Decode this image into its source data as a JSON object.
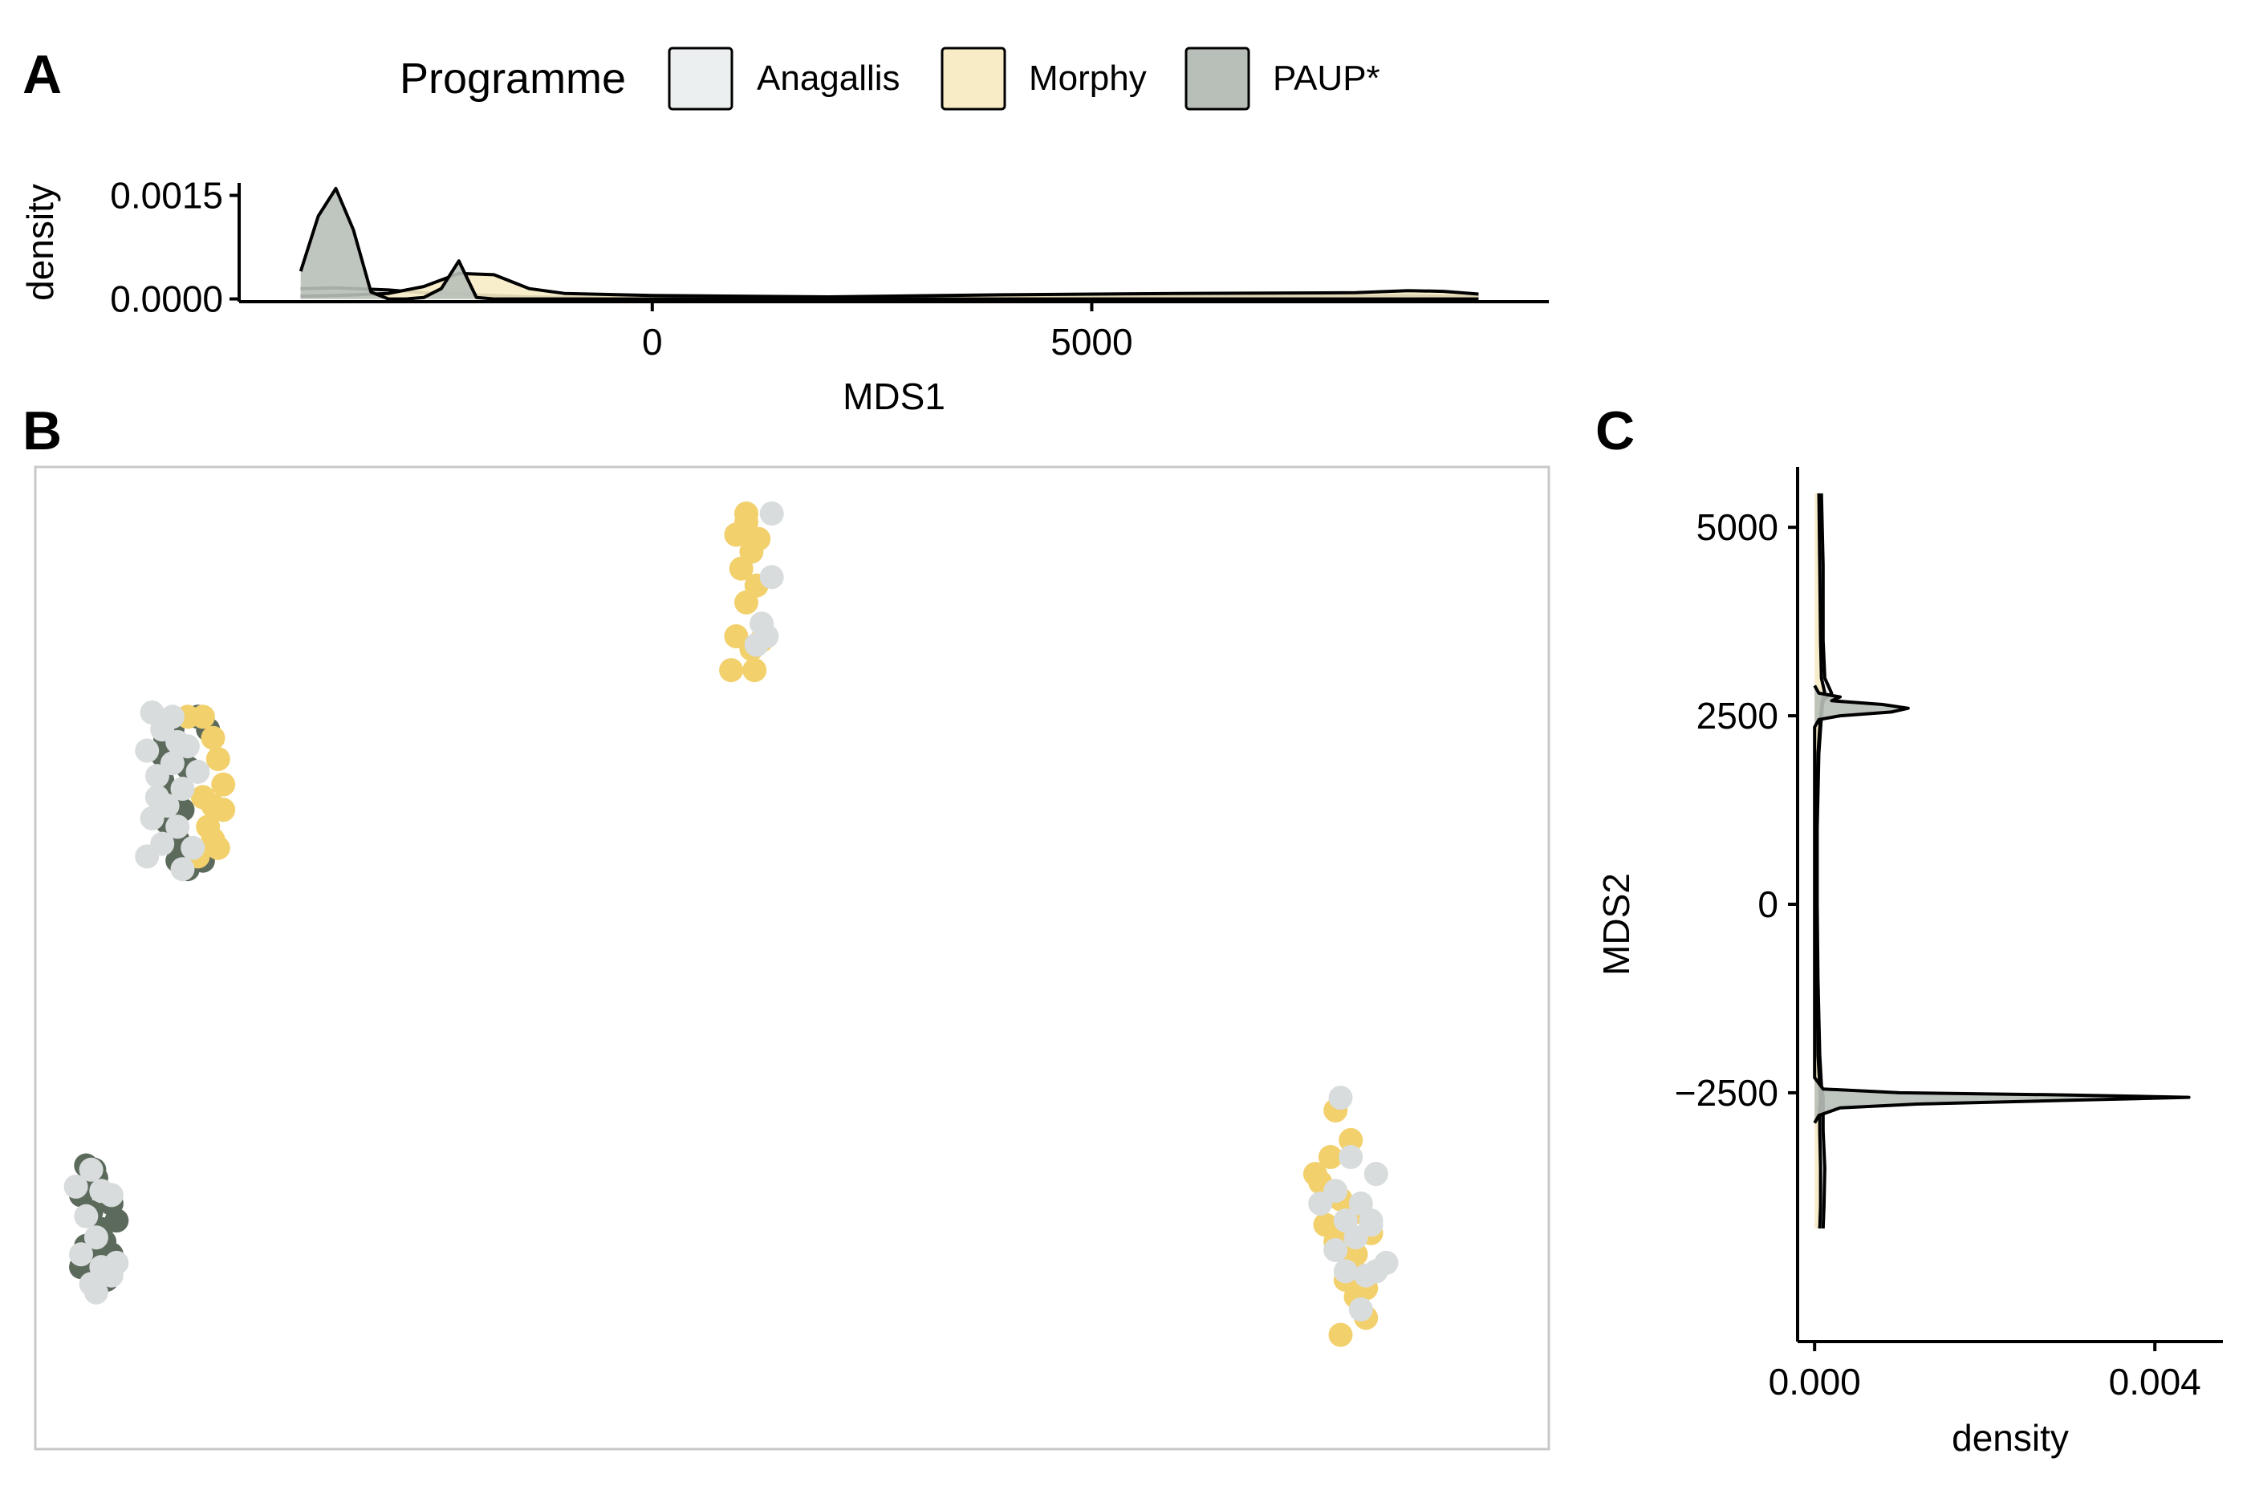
{
  "figure": {
    "panel_labels": {
      "a": "A",
      "b": "B",
      "c": "C"
    }
  },
  "legend": {
    "title": "Programme",
    "items": [
      {
        "label": "Anagallis",
        "fill": "#eceff0"
      },
      {
        "label": "Morphy",
        "fill": "#f8ecc6"
      },
      {
        "label": "PAUP*",
        "fill": "#b8bfb8"
      }
    ]
  },
  "colors": {
    "Anagallis": "#d8dcdc",
    "Morphy": "#f2d06c",
    "PAUP*": "#5c6a5c",
    "line": "#000000",
    "panel_border": "#c8c8c8"
  },
  "chart_data": [
    {
      "id": "A",
      "type": "area",
      "xlabel": "MDS1",
      "ylabel": "density",
      "xlim": [
        -4700,
        10200
      ],
      "ylim": [
        -4e-05,
        0.00168
      ],
      "x_ticks": [
        0,
        5000
      ],
      "x_tick_labels": [
        "0",
        "5000"
      ],
      "y_ticks": [
        0.0,
        0.0015
      ],
      "y_tick_labels": [
        "0.0000",
        "0.0015"
      ],
      "series": [
        {
          "name": "Anagallis",
          "x": [
            -4000,
            -3600,
            -3000,
            -2600,
            -2200,
            -1800,
            -1400,
            -1000,
            0,
            2000,
            4000,
            6000,
            8000,
            8600,
            9000,
            9400
          ],
          "y": [
            0.00015,
            0.00016,
            0.00013,
            9e-05,
            7e-05,
            5e-05,
            3e-05,
            2e-05,
            1e-05,
            0.0,
            2e-05,
            3e-05,
            4e-05,
            5e-05,
            4e-05,
            3e-05
          ]
        },
        {
          "name": "Morphy",
          "x": [
            -4000,
            -3600,
            -3000,
            -2600,
            -2200,
            -1800,
            -1400,
            -1000,
            0,
            2000,
            4000,
            6000,
            8000,
            8600,
            9000,
            9400
          ],
          "y": [
            4e-05,
            5e-05,
            8e-05,
            0.00018,
            0.00037,
            0.00035,
            0.00015,
            8e-05,
            5e-05,
            3e-05,
            6e-05,
            8e-05,
            9e-05,
            0.00012,
            0.00011,
            7e-05
          ]
        },
        {
          "name": "PAUP*",
          "x": [
            -4000,
            -3800,
            -3600,
            -3400,
            -3200,
            -3000,
            -2800,
            -2600,
            -2400,
            -2200,
            -2000,
            -1800,
            -1600,
            -1400,
            -1200,
            -1000,
            0,
            9400
          ],
          "y": [
            0.0004,
            0.0012,
            0.0016,
            0.001,
            0.0001,
            0.0,
            0.0,
            2e-05,
            0.00015,
            0.00055,
            2e-05,
            0.0,
            0.0,
            0.0,
            0.0,
            0.0,
            0.0,
            0.0
          ]
        }
      ]
    },
    {
      "id": "B",
      "type": "scatter",
      "xlabel": "",
      "ylabel": "",
      "xlim": [
        -4700,
        10200
      ],
      "ylim": [
        -5800,
        5800
      ],
      "series": [
        {
          "name": "PAUP*",
          "points": [
            [
              -3420,
              2600
            ],
            [
              -3300,
              2400
            ],
            [
              -3200,
              2250
            ],
            [
              -3450,
              2100
            ],
            [
              -3350,
              1900
            ],
            [
              -3250,
              1750
            ],
            [
              -3400,
              1600
            ],
            [
              -3300,
              1400
            ],
            [
              -3150,
              1250
            ],
            [
              -3050,
              1150
            ],
            [
              -3200,
              1050
            ],
            [
              -3100,
              2850
            ],
            [
              -3000,
              2700
            ],
            [
              -3300,
              1150
            ],
            [
              -3450,
              2400
            ],
            [
              -3350,
              2700
            ],
            [
              -4200,
              -2450
            ],
            [
              -4100,
              -2600
            ],
            [
              -4250,
              -2800
            ],
            [
              -4150,
              -3000
            ],
            [
              -4050,
              -3200
            ],
            [
              -4200,
              -3400
            ],
            [
              -4100,
              -3600
            ],
            [
              -4000,
              -3800
            ],
            [
              -3950,
              -3500
            ],
            [
              -3900,
              -3100
            ],
            [
              -4250,
              -3650
            ],
            [
              -3950,
              -2900
            ],
            [
              -4120,
              -2500
            ],
            [
              -4020,
              -3350
            ]
          ]
        },
        {
          "name": "Morphy",
          "points": [
            [
              -3050,
              2850
            ],
            [
              -2950,
              2600
            ],
            [
              -2900,
              2350
            ],
            [
              -2850,
              2050
            ],
            [
              -2950,
              1800
            ],
            [
              -3000,
              1550
            ],
            [
              -2900,
              1300
            ],
            [
              -3100,
              1200
            ],
            [
              -3200,
              2850
            ],
            [
              -2850,
              1750
            ],
            [
              -2950,
              1400
            ],
            [
              -3050,
              1900
            ],
            [
              2300,
              5250
            ],
            [
              2200,
              5000
            ],
            [
              2350,
              4800
            ],
            [
              2250,
              4600
            ],
            [
              2400,
              4400
            ],
            [
              2300,
              4200
            ],
            [
              2200,
              3800
            ],
            [
              2350,
              3650
            ],
            [
              2450,
              3750
            ],
            [
              2150,
              3400
            ],
            [
              2380,
              3400
            ],
            [
              2300,
              5150
            ],
            [
              2420,
              4950
            ],
            [
              7900,
              -2550
            ],
            [
              8050,
              -2350
            ],
            [
              8250,
              -2150
            ],
            [
              8150,
              -2850
            ],
            [
              8300,
              -2950
            ],
            [
              8000,
              -3150
            ],
            [
              8200,
              -3200
            ],
            [
              8350,
              -3000
            ],
            [
              7950,
              -2650
            ],
            [
              8100,
              -3350
            ],
            [
              8250,
              -3600
            ],
            [
              8200,
              -3800
            ],
            [
              8300,
              -4000
            ],
            [
              8400,
              -4250
            ],
            [
              8150,
              -4450
            ],
            [
              8100,
              -1800
            ],
            [
              8450,
              -3250
            ],
            [
              8300,
              -3500
            ],
            [
              8400,
              -3900
            ]
          ]
        },
        {
          "name": "Anagallis",
          "points": [
            [
              -3550,
              2900
            ],
            [
              -3450,
              2700
            ],
            [
              -3600,
              2450
            ],
            [
              -3350,
              2300
            ],
            [
              -3500,
              2150
            ],
            [
              -3250,
              2000
            ],
            [
              -3400,
              1800
            ],
            [
              -3550,
              1650
            ],
            [
              -3300,
              1550
            ],
            [
              -3450,
              1350
            ],
            [
              -3150,
              1300
            ],
            [
              -3600,
              1200
            ],
            [
              -3200,
              2500
            ],
            [
              -3100,
              2200
            ],
            [
              -3350,
              2850
            ],
            [
              -3250,
              1050
            ],
            [
              -3500,
              1900
            ],
            [
              -3300,
              2550
            ],
            [
              -4300,
              -2700
            ],
            [
              -4150,
              -2500
            ],
            [
              -4050,
              -2750
            ],
            [
              -4200,
              -3050
            ],
            [
              -4100,
              -3300
            ],
            [
              -4250,
              -3500
            ],
            [
              -4050,
              -3650
            ],
            [
              -3950,
              -3750
            ],
            [
              -4150,
              -3850
            ],
            [
              -4100,
              -3950
            ],
            [
              -3900,
              -3600
            ],
            [
              -3950,
              -2800
            ],
            [
              2550,
              5250
            ],
            [
              2550,
              4500
            ],
            [
              2450,
              3950
            ],
            [
              2500,
              3800
            ],
            [
              2400,
              3700
            ],
            [
              8150,
              -1650
            ],
            [
              8250,
              -2350
            ],
            [
              8100,
              -2750
            ],
            [
              8350,
              -2900
            ],
            [
              8200,
              -3100
            ],
            [
              8450,
              -3100
            ],
            [
              8500,
              -2550
            ],
            [
              8300,
              -3300
            ],
            [
              8100,
              -3450
            ],
            [
              8200,
              -3700
            ],
            [
              8400,
              -3750
            ],
            [
              8500,
              -3700
            ],
            [
              8350,
              -4150
            ],
            [
              8600,
              -3600
            ],
            [
              8450,
              -3150
            ],
            [
              7950,
              -2900
            ]
          ]
        }
      ]
    },
    {
      "id": "C",
      "type": "area",
      "xlabel": "density",
      "ylabel": "MDS2",
      "xlim": [
        -0.0002,
        0.0048
      ],
      "ylim": [
        -5800,
        5800
      ],
      "x_ticks": [
        0.0,
        0.004
      ],
      "x_tick_labels": [
        "0.000",
        "0.004"
      ],
      "y_ticks": [
        5000,
        2500,
        0,
        -2500
      ],
      "y_tick_labels": [
        "5000",
        "2500",
        "0",
        "−2500"
      ],
      "series": [
        {
          "name": "Anagallis",
          "y": [
            5450,
            4500,
            3500,
            3000,
            2800,
            2700,
            2600,
            2500,
            2000,
            1000,
            0,
            -1000,
            -2000,
            -2400,
            -2550,
            -2700,
            -3000,
            -3500,
            -4000,
            -4300
          ],
          "x": [
            8e-05,
            0.0001,
            0.0001,
            0.00012,
            0.0002,
            0.0001,
            9e-05,
            8e-05,
            5e-05,
            3e-05,
            3e-05,
            4e-05,
            6e-05,
            8e-05,
            0.0001,
            0.0001,
            0.0001,
            0.00012,
            0.00011,
            0.0001
          ]
        },
        {
          "name": "Morphy",
          "y": [
            5450,
            4500,
            3500,
            3000,
            2800,
            2700,
            2600,
            2500,
            2000,
            1000,
            0,
            -1000,
            -2000,
            -2400,
            -2550,
            -2700,
            -3000,
            -3500,
            -4000,
            -4300
          ],
          "x": [
            5e-05,
            6e-05,
            7e-05,
            8e-05,
            0.00012,
            9e-05,
            8e-05,
            7e-05,
            4e-05,
            2e-05,
            2e-05,
            3e-05,
            4e-05,
            6e-05,
            7e-05,
            6e-05,
            6e-05,
            7e-05,
            7e-05,
            6e-05
          ]
        },
        {
          "name": "PAUP*",
          "y": [
            2900,
            2800,
            2750,
            2700,
            2650,
            2600,
            2550,
            2500,
            2450,
            2350,
            -2300,
            -2450,
            -2500,
            -2530,
            -2560,
            -2600,
            -2650,
            -2700,
            -2800,
            -2900
          ],
          "x": [
            0.0,
            5e-05,
            0.0003,
            0.0002,
            0.0008,
            0.0011,
            0.0009,
            0.0003,
            5e-05,
            0.0,
            0.0,
            0.0001,
            0.001,
            0.003,
            0.0044,
            0.003,
            0.0012,
            0.0003,
            5e-05,
            0.0
          ]
        }
      ]
    }
  ]
}
